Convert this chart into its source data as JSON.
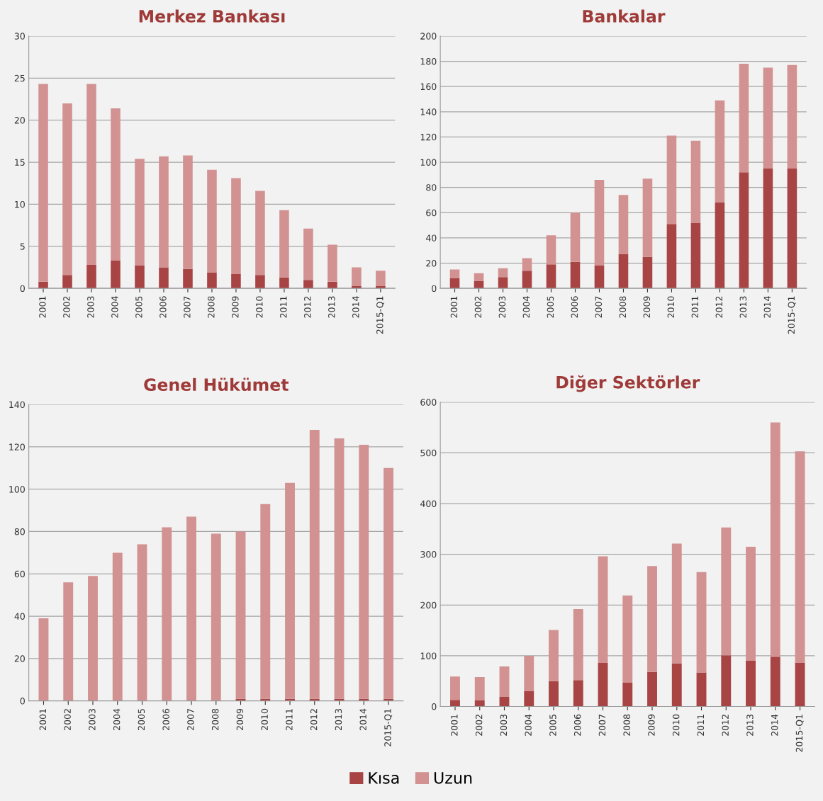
{
  "chart_data": [
    {
      "type": "bar",
      "title": "Merkez Bankası",
      "stacked": true,
      "grid": "y",
      "legend": "bottom",
      "categories": [
        "2001",
        "2002",
        "2003",
        "2004",
        "2005",
        "2006",
        "2007",
        "2008",
        "2009",
        "2010",
        "2011",
        "2012",
        "2013",
        "2014",
        "2015-Q1"
      ],
      "ylim": [
        0,
        30
      ],
      "yticks": [
        0,
        5,
        10,
        15,
        20,
        25,
        30
      ],
      "series": [
        {
          "name": "Kısa",
          "color": "#a84444",
          "values": [
            0.8,
            1.6,
            2.8,
            3.3,
            2.7,
            2.5,
            2.3,
            1.9,
            1.7,
            1.6,
            1.3,
            1.0,
            0.8,
            0.3,
            0.3
          ]
        },
        {
          "name": "Uzun",
          "color": "#d39292",
          "values": [
            23.5,
            20.4,
            21.5,
            18.1,
            12.7,
            13.2,
            13.5,
            12.2,
            11.4,
            10.0,
            8.0,
            6.1,
            4.4,
            2.2,
            1.8
          ]
        }
      ]
    },
    {
      "type": "bar",
      "title": "Bankalar",
      "stacked": true,
      "grid": "y",
      "categories": [
        "2001",
        "2002",
        "2003",
        "2004",
        "2005",
        "2006",
        "2007",
        "2008",
        "2009",
        "2010",
        "2011",
        "2012",
        "2013",
        "2014",
        "2015-Q1"
      ],
      "ylim": [
        0,
        200
      ],
      "yticks": [
        0,
        20,
        40,
        60,
        80,
        100,
        120,
        140,
        160,
        180,
        200
      ],
      "series": [
        {
          "color": "#a84444",
          "values": [
            8,
            6,
            9,
            14,
            19,
            21,
            18,
            27,
            25,
            51,
            52,
            68,
            92,
            95,
            95
          ]
        },
        {
          "color": "#d39292",
          "values": [
            7,
            6,
            7,
            10,
            23,
            39,
            68,
            47,
            62,
            70,
            65,
            81,
            86,
            80,
            82
          ]
        }
      ]
    },
    {
      "type": "bar",
      "title": "Genel Hükümet",
      "stacked": true,
      "grid": "y",
      "categories": [
        "2001",
        "2002",
        "2003",
        "2004",
        "2005",
        "2006",
        "2007",
        "2008",
        "2009",
        "2010",
        "2011",
        "2012",
        "2013",
        "2014",
        "2015-Q1"
      ],
      "ylim": [
        0,
        140
      ],
      "yticks": [
        0,
        20,
        40,
        60,
        80,
        100,
        120,
        140
      ],
      "series": [
        {
          "color": "#a84444",
          "values": [
            0,
            0,
            0,
            0,
            0,
            0,
            0,
            0,
            1,
            1,
            1,
            1,
            1,
            1,
            1
          ]
        },
        {
          "color": "#d39292",
          "values": [
            39,
            56,
            59,
            70,
            74,
            82,
            87,
            79,
            79,
            92,
            102,
            127,
            123,
            120,
            109
          ]
        }
      ]
    },
    {
      "type": "bar",
      "title": "Diğer Sektörler",
      "stacked": true,
      "grid": "y",
      "categories": [
        "2001",
        "2002",
        "2003",
        "2004",
        "2005",
        "2006",
        "2007",
        "2008",
        "2009",
        "2010",
        "2011",
        "2012",
        "2013",
        "2014",
        "2015-Q1"
      ],
      "ylim": [
        0,
        600
      ],
      "yticks": [
        0,
        100,
        200,
        300,
        400,
        500,
        600
      ],
      "series": [
        {
          "color": "#a84444",
          "values": [
            13,
            12,
            19,
            30,
            50,
            52,
            86,
            47,
            68,
            85,
            67,
            101,
            90,
            98,
            86
          ]
        },
        {
          "color": "#d39292",
          "values": [
            46,
            46,
            60,
            70,
            101,
            140,
            210,
            172,
            209,
            236,
            198,
            252,
            225,
            462,
            417
          ]
        }
      ]
    }
  ]
}
